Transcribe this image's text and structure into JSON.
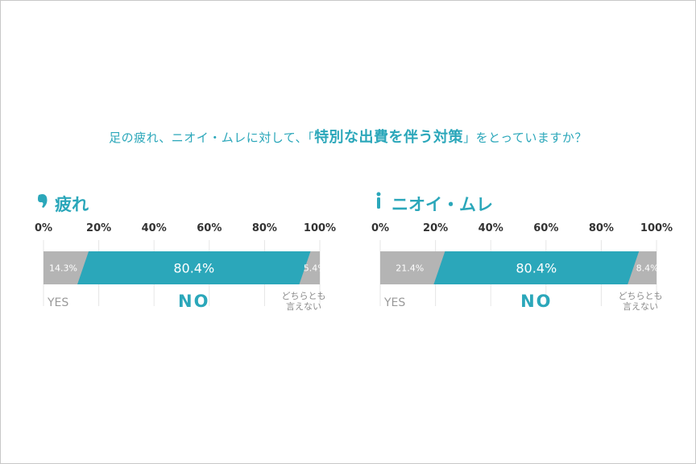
{
  "question": {
    "before": "足の疲れ、ニオイ・ムレに対して、「",
    "emphasis": "特別な出費を伴う対策",
    "after": "」をとっていますか？"
  },
  "colors": {
    "accent": "#2ba7ba",
    "gray_segment": "#b4b4b4",
    "axis_text": "#333333",
    "category_text": "#999999"
  },
  "axis_ticks": [
    "0%",
    "20%",
    "40%",
    "60%",
    "80%",
    "100%"
  ],
  "chart_data": [
    {
      "type": "bar",
      "title": "疲れ",
      "icon": "foot-icon",
      "xlim": [
        0,
        100
      ],
      "categories": [
        "YES",
        "NO",
        "どちらとも言えない"
      ],
      "values": [
        14.3,
        80.4,
        5.4
      ],
      "value_labels": [
        "14.3%",
        "80.4%",
        "5.4%"
      ],
      "category_labels": [
        "YES",
        "NO",
        "どちらとも\n言えない"
      ]
    },
    {
      "type": "bar",
      "title": "ニオイ・ムレ",
      "icon": "standing-person-icon",
      "xlim": [
        0,
        100
      ],
      "categories": [
        "YES",
        "NO",
        "どちらとも言えない"
      ],
      "values": [
        21.4,
        80.4,
        8.4
      ],
      "value_labels": [
        "21.4%",
        "80.4%",
        "8.4%"
      ],
      "category_labels": [
        "YES",
        "NO",
        "どちらとも\n言えない"
      ]
    }
  ]
}
